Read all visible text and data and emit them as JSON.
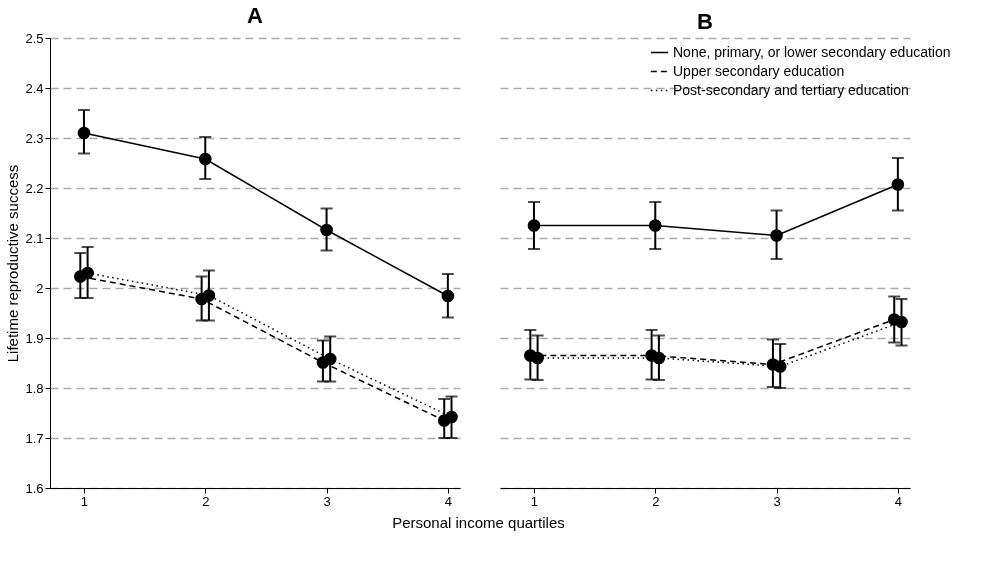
{
  "chart_data": [
    {
      "type": "line",
      "title": "A",
      "xlabel": "Personal income quartiles",
      "ylabel": "Lifetime reproductive success",
      "xlim": [
        0.72,
        4.1
      ],
      "xticks": [
        1,
        2,
        3,
        4
      ],
      "ylim": [
        1.6,
        2.5
      ],
      "yticks": [
        1.6,
        1.7,
        1.8,
        1.9,
        2,
        2.1,
        2.2,
        2.3,
        2.4,
        2.5
      ],
      "grid": "y",
      "marker": "circle",
      "series": [
        {
          "color": "#000000",
          "line_style": "solid",
          "x": [
            1,
            2,
            3,
            4
          ],
          "values": [
            2.31,
            2.258,
            2.116,
            1.984
          ],
          "errors": [
            [
              2.269,
              2.356
            ],
            [
              2.218,
              2.302
            ],
            [
              2.075,
              2.159
            ],
            [
              1.941,
              2.028
            ]
          ]
        },
        {
          "color": "#000000",
          "line_style": "dashed",
          "x": [
            0.97,
            1.97,
            2.97,
            3.97
          ],
          "values": [
            2.023,
            1.978,
            1.851,
            1.735
          ],
          "errors": [
            [
              1.98,
              2.07
            ],
            [
              1.935,
              2.023
            ],
            [
              1.813,
              1.895
            ],
            [
              1.7,
              1.778
            ]
          ]
        },
        {
          "color": "#000000",
          "line_style": "dotted",
          "x": [
            1.03,
            2.03,
            3.03,
            4.03
          ],
          "values": [
            2.03,
            1.985,
            1.858,
            1.742
          ],
          "errors": [
            [
              1.98,
              2.082
            ],
            [
              1.935,
              2.035
            ],
            [
              1.813,
              1.903
            ],
            [
              1.7,
              1.783
            ]
          ]
        }
      ]
    },
    {
      "type": "line",
      "title": "B",
      "xlim": [
        0.72,
        4.1
      ],
      "xticks": [
        1,
        2,
        3,
        4
      ],
      "ylim": [
        1.6,
        2.5
      ],
      "yticks": [
        1.6,
        1.7,
        1.8,
        1.9,
        2,
        2.1,
        2.2,
        2.3,
        2.4,
        2.5
      ],
      "tick_labels": "x",
      "grid": "y",
      "marker": "circle",
      "legend": "top right",
      "series": [
        {
          "name": "None, primary, or lower secondary education",
          "color": "#000000",
          "line_style": "solid",
          "x": [
            1,
            2,
            3,
            4
          ],
          "values": [
            2.125,
            2.125,
            2.105,
            2.207
          ],
          "errors": [
            [
              2.078,
              2.172
            ],
            [
              2.078,
              2.172
            ],
            [
              2.058,
              2.155
            ],
            [
              2.155,
              2.26
            ]
          ]
        },
        {
          "name": "Upper secondary education",
          "color": "#000000",
          "line_style": "dashed",
          "x": [
            0.97,
            1.97,
            2.97,
            3.97
          ],
          "values": [
            1.865,
            1.865,
            1.847,
            1.937
          ],
          "errors": [
            [
              1.817,
              1.916
            ],
            [
              1.817,
              1.916
            ],
            [
              1.802,
              1.897
            ],
            [
              1.891,
              1.983
            ]
          ]
        },
        {
          "name": "Post-secondary and tertiary education",
          "color": "#000000",
          "line_style": "dotted",
          "x": [
            1.03,
            2.03,
            3.03,
            4.03
          ],
          "values": [
            1.86,
            1.86,
            1.843,
            1.932
          ],
          "errors": [
            [
              1.816,
              1.905
            ],
            [
              1.816,
              1.905
            ],
            [
              1.8,
              1.888
            ],
            [
              1.885,
              1.978
            ]
          ]
        }
      ]
    }
  ]
}
